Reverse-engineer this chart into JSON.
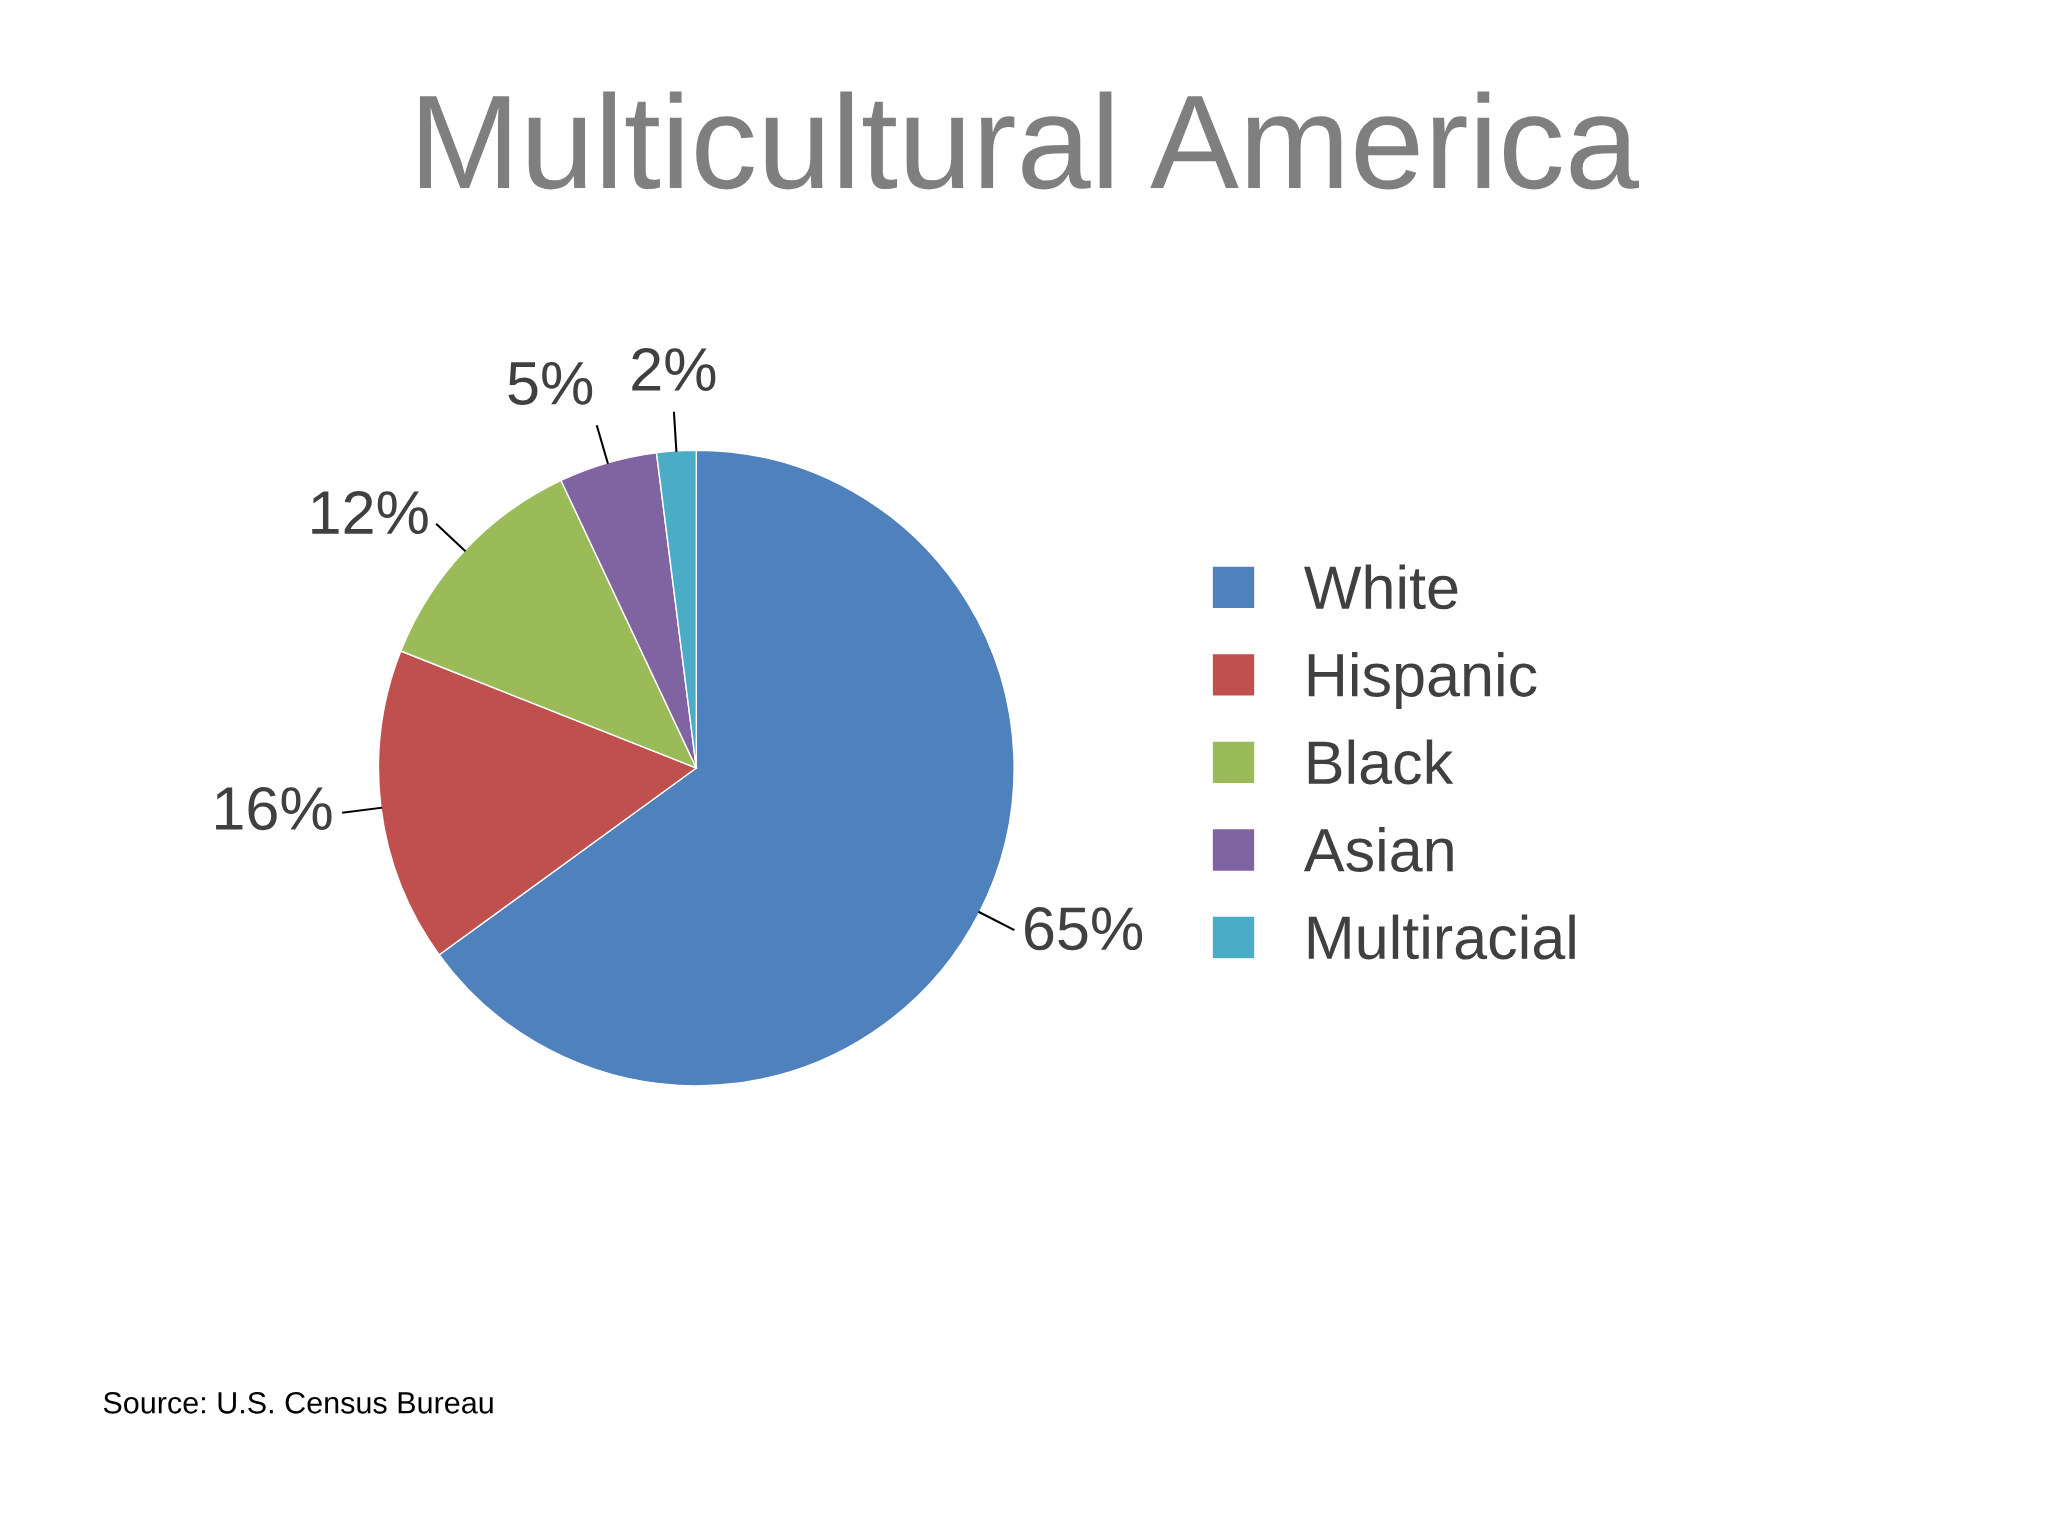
{
  "chart_data": {
    "type": "pie",
    "title": "Multicultural America",
    "categories": [
      "White",
      "Hispanic",
      "Black",
      "Asian",
      "Multiracial"
    ],
    "values": [
      65,
      16,
      12,
      5,
      2
    ],
    "value_labels": [
      "65%",
      "16%",
      "12%",
      "5%",
      "2%"
    ],
    "colors": [
      "#4f81bd",
      "#c0504d",
      "#9bbb59",
      "#8064a2",
      "#4bacc6"
    ],
    "legend": "right",
    "annotations": [
      "Source: U.S. Census Bureau"
    ]
  }
}
